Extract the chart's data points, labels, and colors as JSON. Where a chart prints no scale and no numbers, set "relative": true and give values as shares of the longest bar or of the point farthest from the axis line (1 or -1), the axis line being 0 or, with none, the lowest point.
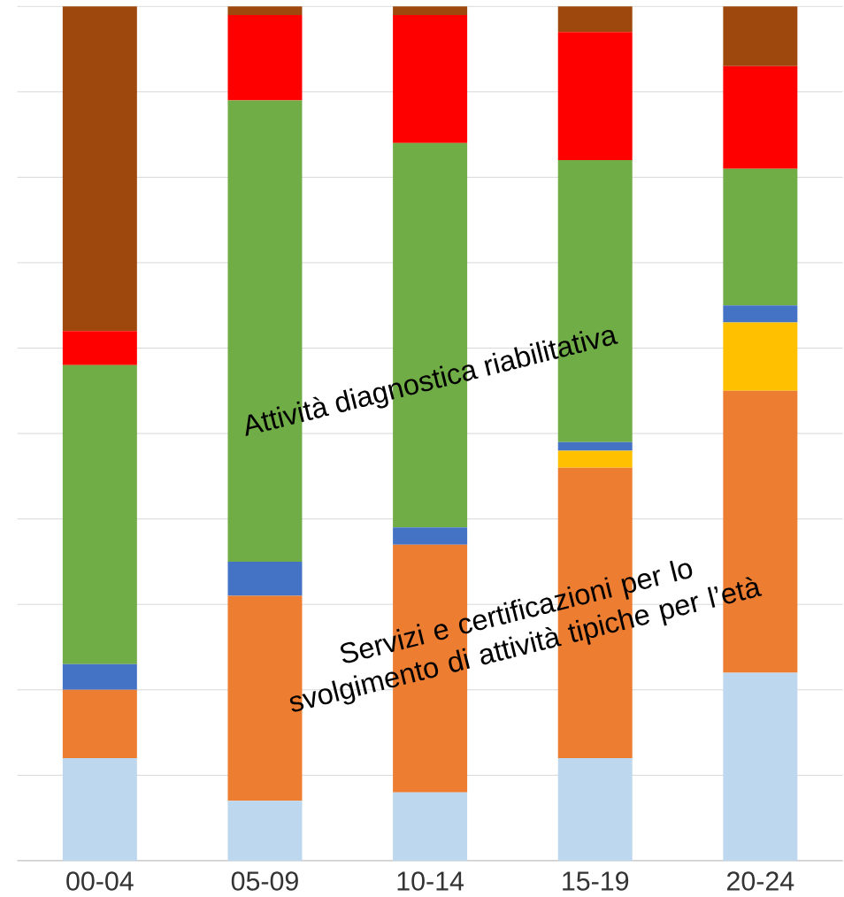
{
  "chart_data": {
    "type": "bar",
    "stacked": true,
    "relative": true,
    "grid": "y",
    "categories": [
      "00-04",
      "05-09",
      "10-14",
      "15-19",
      "20-24"
    ],
    "series": [
      {
        "color": "#bdd7ee",
        "values": [
          0.12,
          0.07,
          0.08,
          0.12,
          0.22
        ]
      },
      {
        "color": "#ed7d31",
        "values": [
          0.08,
          0.24,
          0.29,
          0.34,
          0.33
        ]
      },
      {
        "color": "#ffc000",
        "values": [
          0,
          0,
          0,
          0.02,
          0.08
        ]
      },
      {
        "color": "#4472c4",
        "values": [
          0.03,
          0.04,
          0.02,
          0.01,
          0.02
        ]
      },
      {
        "color": "#70ad47",
        "values": [
          0.35,
          0.54,
          0.45,
          0.33,
          0.16
        ]
      },
      {
        "color": "#ff0000",
        "values": [
          0.04,
          0.1,
          0.15,
          0.15,
          0.12
        ]
      },
      {
        "color": "#9e480e",
        "values": [
          0.38,
          0.01,
          0.01,
          0.03,
          0.07
        ]
      }
    ],
    "annotations": [
      "Attività diagnostica riabilitativa",
      "Servizi e certificazioni per lo svolgimento di attività tipiche per l’età"
    ]
  }
}
